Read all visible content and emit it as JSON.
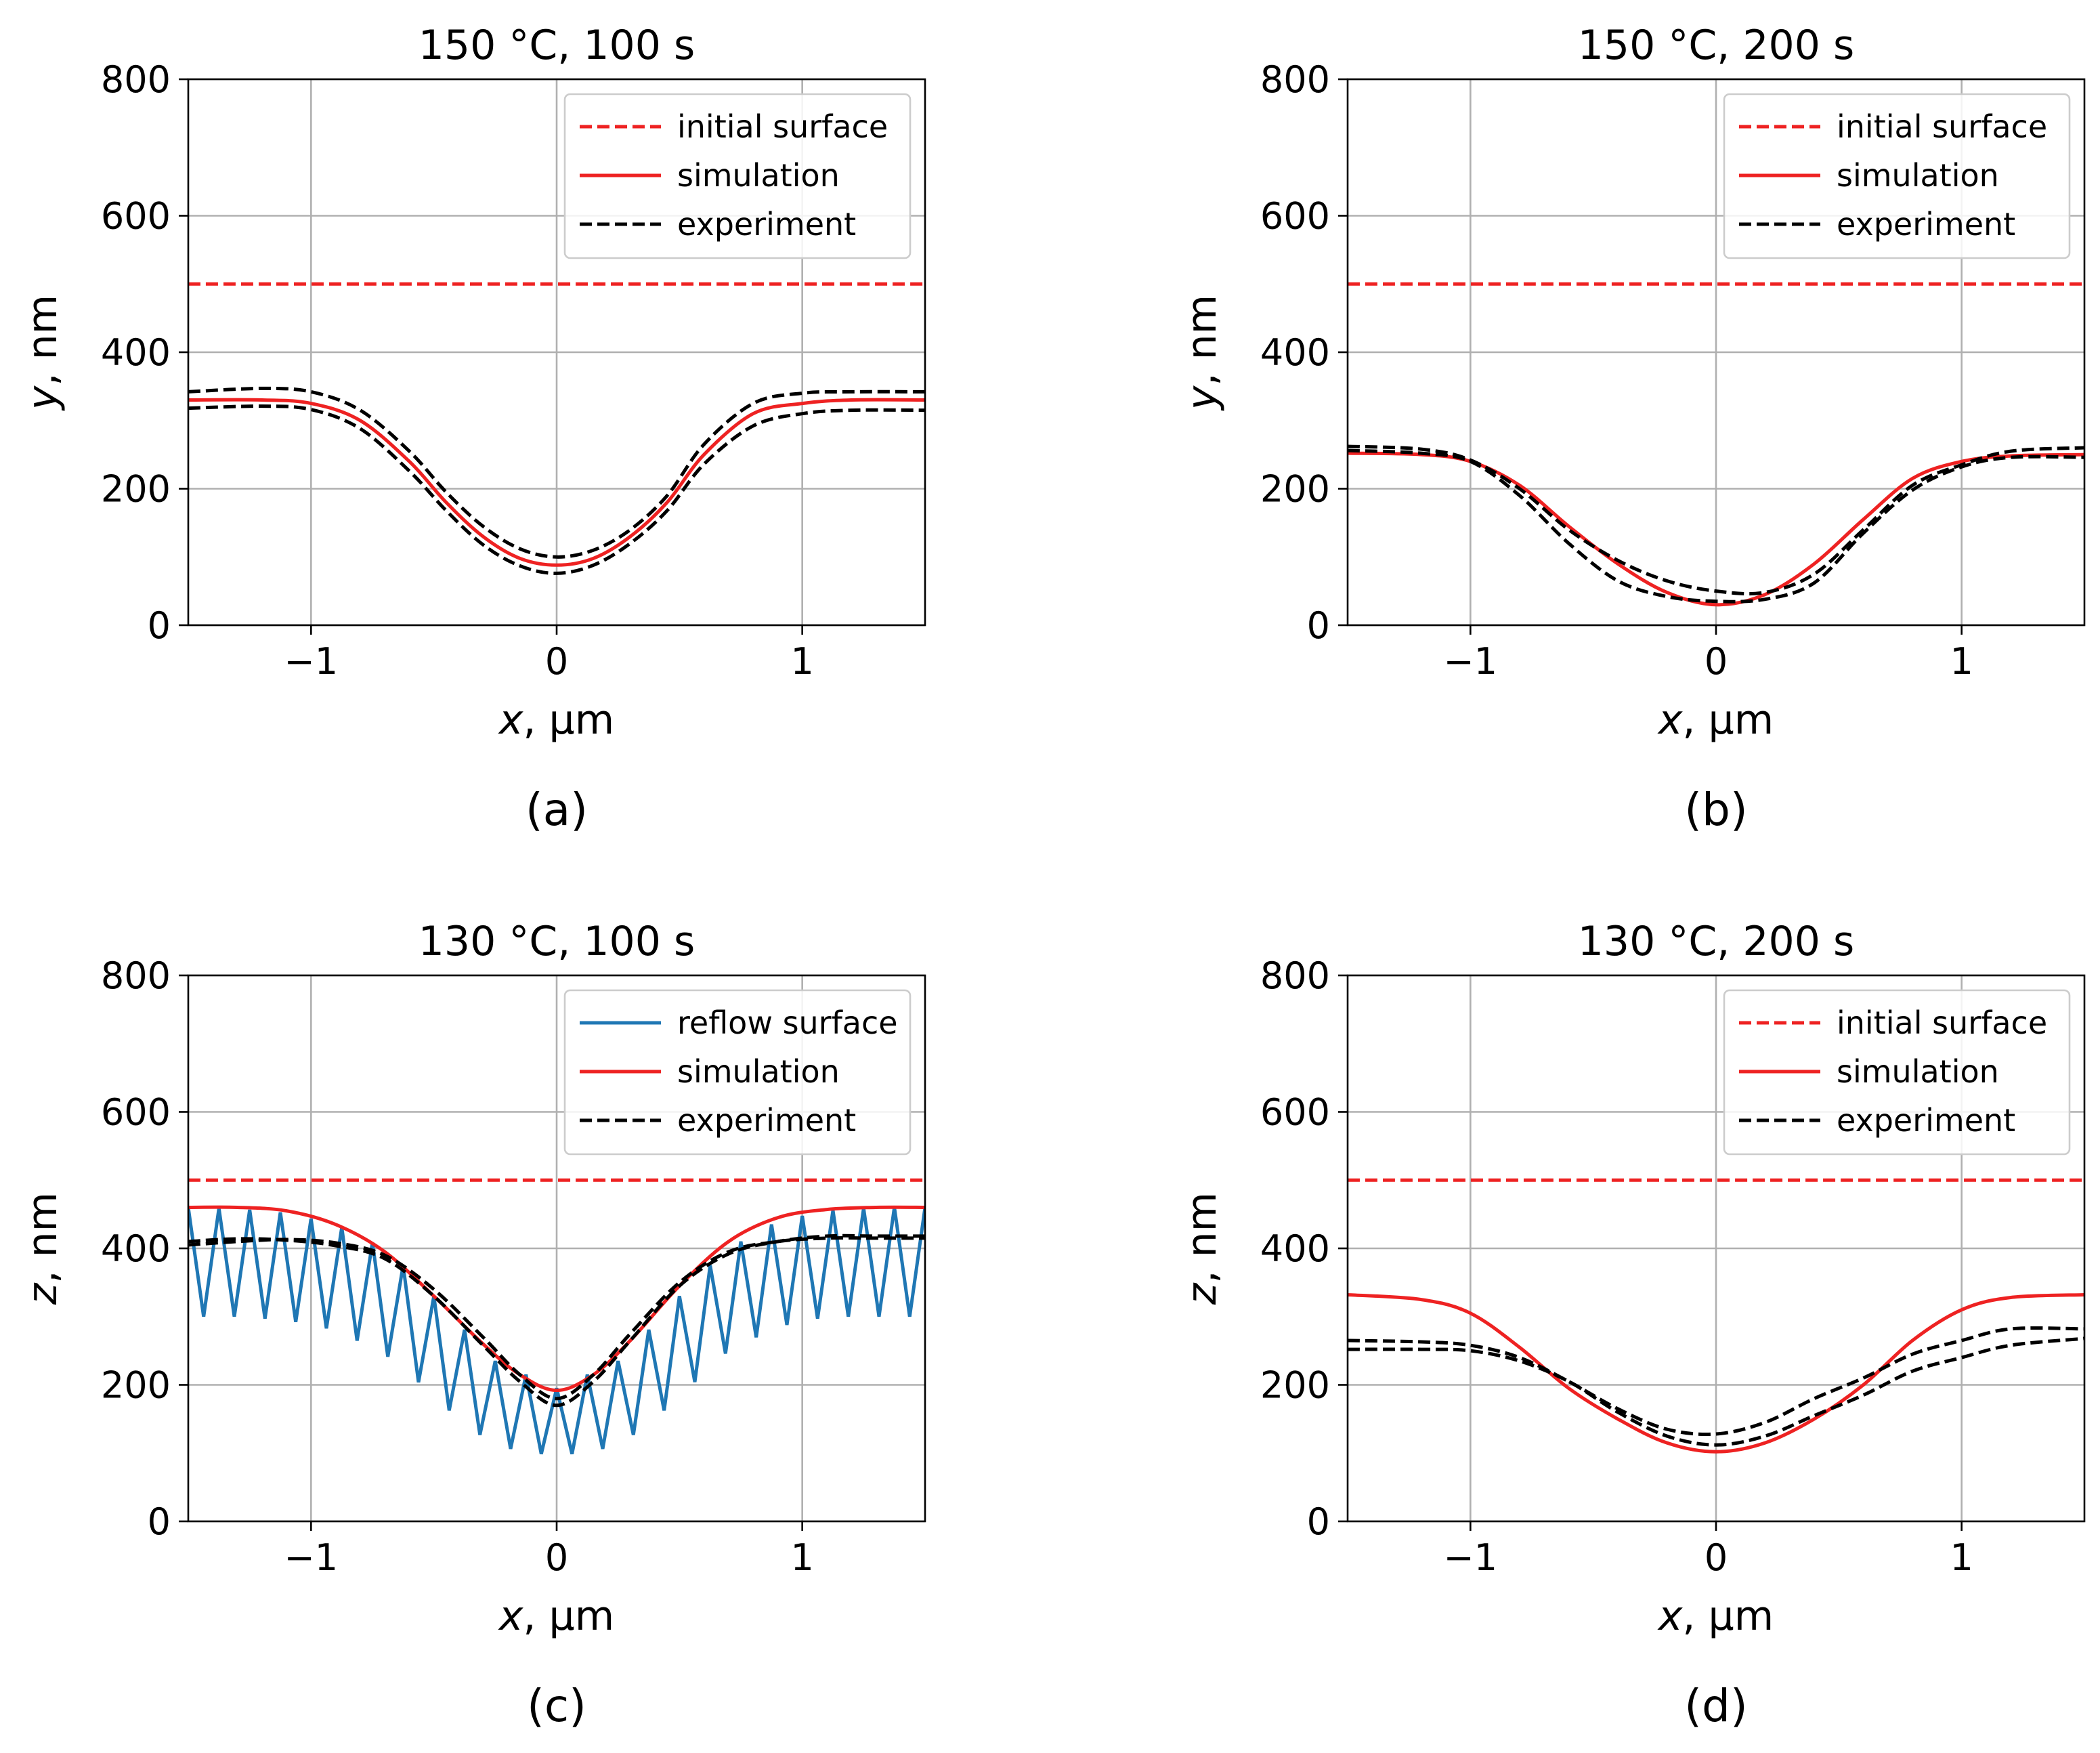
{
  "chart_data": [
    {
      "id": "a",
      "type": "line",
      "title": "150 °C, 100 s",
      "panel_label": "(a)",
      "xlabel_var": "x",
      "xlabel_unit": ", µm",
      "ylabel_var": "y",
      "ylabel_unit": ", nm",
      "xlim": [
        -1.5,
        1.5
      ],
      "ylim": [
        0,
        800
      ],
      "xticks": [
        -1,
        0,
        1
      ],
      "xtick_labels": [
        "−1",
        "0",
        "1"
      ],
      "yticks": [
        0,
        200,
        400,
        600,
        800
      ],
      "ytick_labels": [
        "0",
        "200",
        "400",
        "600",
        "800"
      ],
      "grid": true,
      "legend_position": "top-right",
      "series": [
        {
          "name": "initial surface",
          "style": "dashed",
          "color": "#ee2222",
          "x": [
            -1.5,
            1.5
          ],
          "y": [
            500,
            500
          ]
        },
        {
          "name": "simulation",
          "style": "solid",
          "color": "#ee2222",
          "x": [
            -1.5,
            -1.2,
            -1.0,
            -0.8,
            -0.6,
            -0.45,
            -0.3,
            -0.15,
            0,
            0.15,
            0.3,
            0.45,
            0.6,
            0.8,
            1.0,
            1.2,
            1.5
          ],
          "y": [
            330,
            330,
            325,
            300,
            240,
            180,
            130,
            98,
            88,
            98,
            130,
            180,
            250,
            310,
            325,
            330,
            330
          ]
        },
        {
          "name": "experiment",
          "style": "dashed",
          "color": "#000000",
          "x": [
            -1.5,
            -1.2,
            -1.0,
            -0.8,
            -0.6,
            -0.45,
            -0.3,
            -0.15,
            0,
            0.15,
            0.3,
            0.45,
            0.6,
            0.8,
            1.0,
            1.2,
            1.5
          ],
          "y": [
            342,
            347,
            342,
            315,
            255,
            195,
            145,
            112,
            100,
            110,
            140,
            190,
            265,
            325,
            340,
            342,
            342
          ]
        },
        {
          "name": "experiment (lower)",
          "style": "dashed",
          "color": "#000000",
          "legend": false,
          "x": [
            -1.5,
            -1.2,
            -1.0,
            -0.8,
            -0.6,
            -0.45,
            -0.3,
            -0.15,
            0,
            0.15,
            0.3,
            0.45,
            0.6,
            0.8,
            1.0,
            1.2,
            1.5
          ],
          "y": [
            318,
            321,
            316,
            288,
            226,
            168,
            118,
            87,
            76,
            88,
            120,
            168,
            236,
            292,
            310,
            315,
            315
          ]
        }
      ]
    },
    {
      "id": "b",
      "type": "line",
      "title": "150 °C, 200 s",
      "panel_label": "(b)",
      "xlabel_var": "x",
      "xlabel_unit": ", µm",
      "ylabel_var": "y",
      "ylabel_unit": ", nm",
      "xlim": [
        -1.5,
        1.5
      ],
      "ylim": [
        0,
        800
      ],
      "xticks": [
        -1,
        0,
        1
      ],
      "xtick_labels": [
        "−1",
        "0",
        "1"
      ],
      "yticks": [
        0,
        200,
        400,
        600,
        800
      ],
      "ytick_labels": [
        "0",
        "200",
        "400",
        "600",
        "800"
      ],
      "grid": true,
      "legend_position": "top-right",
      "series": [
        {
          "name": "initial surface",
          "style": "dashed",
          "color": "#ee2222",
          "x": [
            -1.5,
            1.5
          ],
          "y": [
            500,
            500
          ]
        },
        {
          "name": "simulation",
          "style": "solid",
          "color": "#ee2222",
          "x": [
            -1.5,
            -1.2,
            -1.0,
            -0.8,
            -0.6,
            -0.4,
            -0.2,
            0,
            0.2,
            0.4,
            0.6,
            0.8,
            1.0,
            1.2,
            1.5
          ],
          "y": [
            252,
            250,
            240,
            205,
            145,
            90,
            48,
            30,
            45,
            90,
            155,
            215,
            240,
            248,
            250
          ]
        },
        {
          "name": "experiment",
          "style": "dashed",
          "color": "#000000",
          "x": [
            -1.5,
            -1.2,
            -1.0,
            -0.8,
            -0.6,
            -0.4,
            -0.2,
            0,
            0.2,
            0.4,
            0.6,
            0.8,
            1.0,
            1.2,
            1.5
          ],
          "y": [
            262,
            258,
            242,
            200,
            140,
            95,
            65,
            50,
            48,
            75,
            140,
            205,
            235,
            255,
            260
          ]
        },
        {
          "name": "experiment (lower)",
          "style": "dashed",
          "color": "#000000",
          "legend": false,
          "x": [
            -1.5,
            -1.2,
            -1.0,
            -0.8,
            -0.6,
            -0.4,
            -0.2,
            0,
            0.2,
            0.4,
            0.6,
            0.8,
            1.0,
            1.2,
            1.5
          ],
          "y": [
            256,
            252,
            240,
            190,
            120,
            65,
            42,
            35,
            38,
            62,
            135,
            198,
            232,
            246,
            246
          ]
        }
      ]
    },
    {
      "id": "c",
      "type": "line",
      "title": "130 °C, 100 s",
      "panel_label": "(c)",
      "xlabel_var": "x",
      "xlabel_unit": ", µm",
      "ylabel_var": "z",
      "ylabel_unit": ", nm",
      "xlim": [
        -1.5,
        1.5
      ],
      "ylim": [
        0,
        800
      ],
      "xticks": [
        -1,
        0,
        1
      ],
      "xtick_labels": [
        "−1",
        "0",
        "1"
      ],
      "yticks": [
        0,
        200,
        400,
        600,
        800
      ],
      "ytick_labels": [
        "0",
        "200",
        "400",
        "600",
        "800"
      ],
      "grid": true,
      "legend_position": "top-right",
      "series": [
        {
          "name": "initial surface",
          "style": "dashed",
          "color": "#ee2222",
          "legend": false,
          "x": [
            -1.5,
            1.5
          ],
          "y": [
            500,
            500
          ]
        },
        {
          "name": "reflow surface",
          "style": "solid",
          "color": "#1f77b4",
          "kind": "zigzag",
          "x_start": -1.5,
          "x_end": 1.5,
          "segments": 48,
          "upper_envelope": [
            460,
            458,
            452,
            435,
            400,
            350,
            290,
            235,
            195,
            235,
            290,
            350,
            400,
            440,
            455,
            460,
            460
          ],
          "lower_envelope": [
            300,
            300,
            295,
            280,
            245,
            200,
            150,
            110,
            95,
            110,
            150,
            200,
            250,
            285,
            300,
            300,
            300
          ],
          "envelope_x": [
            -1.5,
            -1.3,
            -1.1,
            -0.9,
            -0.7,
            -0.55,
            -0.4,
            -0.25,
            0,
            0.25,
            0.4,
            0.55,
            0.7,
            0.9,
            1.1,
            1.3,
            1.5
          ]
        },
        {
          "name": "simulation",
          "style": "solid",
          "color": "#ee2222",
          "x": [
            -1.5,
            -1.3,
            -1.1,
            -0.9,
            -0.7,
            -0.5,
            -0.3,
            -0.15,
            0,
            0.15,
            0.3,
            0.5,
            0.7,
            0.9,
            1.1,
            1.3,
            1.5
          ],
          "y": [
            460,
            460,
            455,
            435,
            395,
            330,
            260,
            215,
            192,
            215,
            265,
            345,
            410,
            445,
            457,
            460,
            460
          ]
        },
        {
          "name": "experiment",
          "style": "dashed",
          "color": "#000000",
          "x": [
            -1.5,
            -1.3,
            -1.1,
            -0.9,
            -0.7,
            -0.5,
            -0.3,
            -0.15,
            0,
            0.15,
            0.3,
            0.5,
            0.7,
            0.9,
            1.1,
            1.3,
            1.5
          ],
          "y": [
            405,
            410,
            413,
            408,
            390,
            340,
            270,
            215,
            180,
            215,
            275,
            350,
            395,
            410,
            415,
            415,
            415
          ]
        },
        {
          "name": "experiment (second)",
          "style": "dashed",
          "color": "#000000",
          "legend": false,
          "x": [
            -1.5,
            -1.3,
            -1.1,
            -0.9,
            -0.7,
            -0.5,
            -0.3,
            -0.15,
            0,
            0.15,
            0.3,
            0.5,
            0.7,
            0.9,
            1.1,
            1.3,
            1.5
          ],
          "y": [
            410,
            414,
            412,
            404,
            385,
            330,
            258,
            205,
            170,
            205,
            265,
            345,
            392,
            410,
            418,
            418,
            418
          ]
        }
      ]
    },
    {
      "id": "d",
      "type": "line",
      "title": "130 °C, 200 s",
      "panel_label": "(d)",
      "xlabel_var": "x",
      "xlabel_unit": ", µm",
      "ylabel_var": "z",
      "ylabel_unit": ", nm",
      "xlim": [
        -1.5,
        1.5
      ],
      "ylim": [
        0,
        800
      ],
      "xticks": [
        -1,
        0,
        1
      ],
      "xtick_labels": [
        "−1",
        "0",
        "1"
      ],
      "yticks": [
        0,
        200,
        400,
        600,
        800
      ],
      "ytick_labels": [
        "0",
        "200",
        "400",
        "600",
        "800"
      ],
      "grid": true,
      "legend_position": "top-right",
      "series": [
        {
          "name": "initial surface",
          "style": "dashed",
          "color": "#ee2222",
          "x": [
            -1.5,
            1.5
          ],
          "y": [
            500,
            500
          ]
        },
        {
          "name": "simulation",
          "style": "solid",
          "color": "#ee2222",
          "x": [
            -1.5,
            -1.2,
            -1.0,
            -0.8,
            -0.6,
            -0.4,
            -0.2,
            0,
            0.2,
            0.4,
            0.6,
            0.8,
            1.0,
            1.2,
            1.5
          ],
          "y": [
            332,
            325,
            305,
            255,
            195,
            150,
            115,
            102,
            115,
            150,
            200,
            265,
            310,
            328,
            332
          ]
        },
        {
          "name": "experiment",
          "style": "dashed",
          "color": "#000000",
          "x": [
            -1.5,
            -1.2,
            -1.0,
            -0.8,
            -0.6,
            -0.4,
            -0.2,
            0,
            0.2,
            0.4,
            0.6,
            0.8,
            1.0,
            1.2,
            1.5
          ],
          "y": [
            265,
            263,
            258,
            240,
            205,
            165,
            135,
            128,
            145,
            180,
            210,
            245,
            265,
            282,
            282
          ]
        },
        {
          "name": "experiment (lower)",
          "style": "dashed",
          "color": "#000000",
          "legend": false,
          "x": [
            -1.5,
            -1.2,
            -1.0,
            -0.8,
            -0.6,
            -0.4,
            -0.2,
            0,
            0.2,
            0.4,
            0.6,
            0.8,
            1.0,
            1.2,
            1.5
          ],
          "y": [
            252,
            252,
            250,
            235,
            205,
            160,
            125,
            112,
            125,
            155,
            185,
            220,
            240,
            258,
            268
          ]
        }
      ]
    }
  ]
}
